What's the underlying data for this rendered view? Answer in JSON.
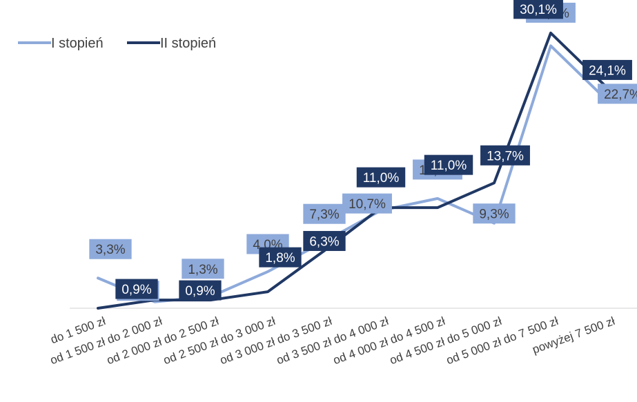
{
  "chart_data": {
    "type": "line",
    "title": "",
    "xlabel": "",
    "ylabel": "",
    "categories": [
      "do 1 500 zł",
      "od 1 500 zł do 2 000 zł",
      "od 2 000 zł do 2 500 zł",
      "od 2 500 zł do 3 000 zł",
      "od 3 000 zł do 3 500 zł",
      "od 3 500 zł do 4 000 zł",
      "od 4 000 zł do 4 500 zł",
      "od 4 500 zł do 5 000 zł",
      "od 5 000 zł do 7 500 zł",
      "powyżej 7 500 zł"
    ],
    "series": [
      {
        "name": "I stopień",
        "color": "#8eaadb",
        "values": [
          3.3,
          0.7,
          1.3,
          4.0,
          7.3,
          10.7,
          12.0,
          9.3,
          28.7,
          22.7
        ],
        "labels": [
          "3,3%",
          "0,7%",
          "1,3%",
          "4,0%",
          "7,3%",
          "10,7%",
          "12,0%",
          "9,3%",
          "28,7%",
          "22,7%"
        ]
      },
      {
        "name": "II stopień",
        "color": "#203864",
        "values": [
          0.0,
          0.9,
          0.9,
          1.8,
          6.3,
          11.0,
          11.0,
          13.7,
          30.1,
          24.1
        ],
        "labels": [
          "",
          "0,9%",
          "0,9%",
          "1,8%",
          "6,3%",
          "11,0%",
          "11,0%",
          "13,7%",
          "30,1%",
          "24,1%"
        ]
      }
    ],
    "legend_position": "top-left",
    "grid": false
  }
}
